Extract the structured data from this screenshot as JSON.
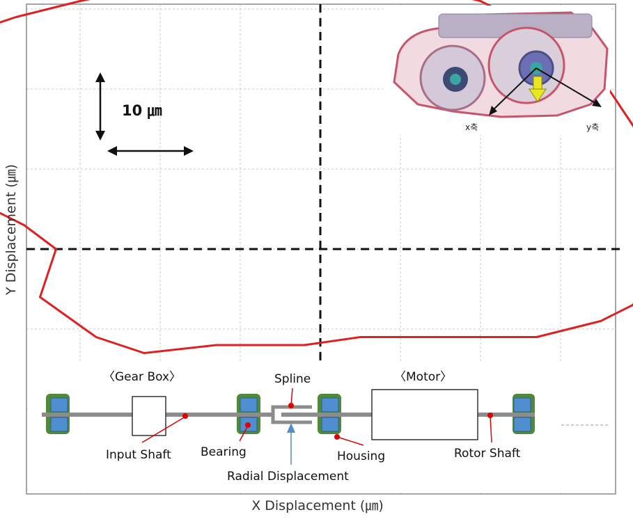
{
  "chart_data": {
    "type": "line",
    "xlabel": "X Displacement (㎛)",
    "ylabel": "Y Displacement (㎛)",
    "scale_bar": "10 ㎛",
    "xlim": [
      -50,
      50
    ],
    "ylim": [
      -40,
      40
    ],
    "grid": true,
    "units": "㎛",
    "series": [
      {
        "color": "#e02020",
        "x": [
          -2,
          -6,
          -13,
          -22,
          -28,
          -35,
          -33,
          -37,
          -41,
          -47,
          -48,
          -47,
          -48,
          -47,
          -44,
          -38,
          -30,
          -20,
          -10,
          0,
          7,
          12,
          20,
          28,
          34,
          38,
          42,
          43,
          42,
          39,
          35,
          27,
          17,
          5,
          -2
        ],
        "y": [
          -12,
          -12,
          -12,
          -13,
          -11,
          -6,
          0,
          3,
          5,
          8,
          11,
          15,
          19,
          23,
          27,
          29,
          31,
          33,
          35,
          35,
          34,
          33,
          31,
          27,
          23,
          17,
          11,
          4,
          -3,
          -7,
          -9,
          -11,
          -11,
          -11,
          -12
        ]
      }
    ]
  },
  "inset_photo": {
    "axis_labels": [
      "x축",
      "y축"
    ],
    "colors": {
      "housing": "#c8546a",
      "arrow": "#e8e820"
    }
  },
  "schematic": {
    "headings": {
      "gearbox": "〈Gear Box〉",
      "motor": "〈Motor〉"
    },
    "labels": {
      "spline": "Spline",
      "input_shaft": "Input Shaft",
      "bearing": "Bearing",
      "housing": "Housing",
      "rotor_shaft": "Rotor Shaft",
      "radial_displacement": "Radial Displacement"
    },
    "colors": {
      "bearing_fill": "#4f8fcf",
      "housing_fill": "#4f8a3a",
      "shaft": "#8c8c8c",
      "callout": "#e00000",
      "radial_arrow": "#4f8fcf"
    }
  }
}
